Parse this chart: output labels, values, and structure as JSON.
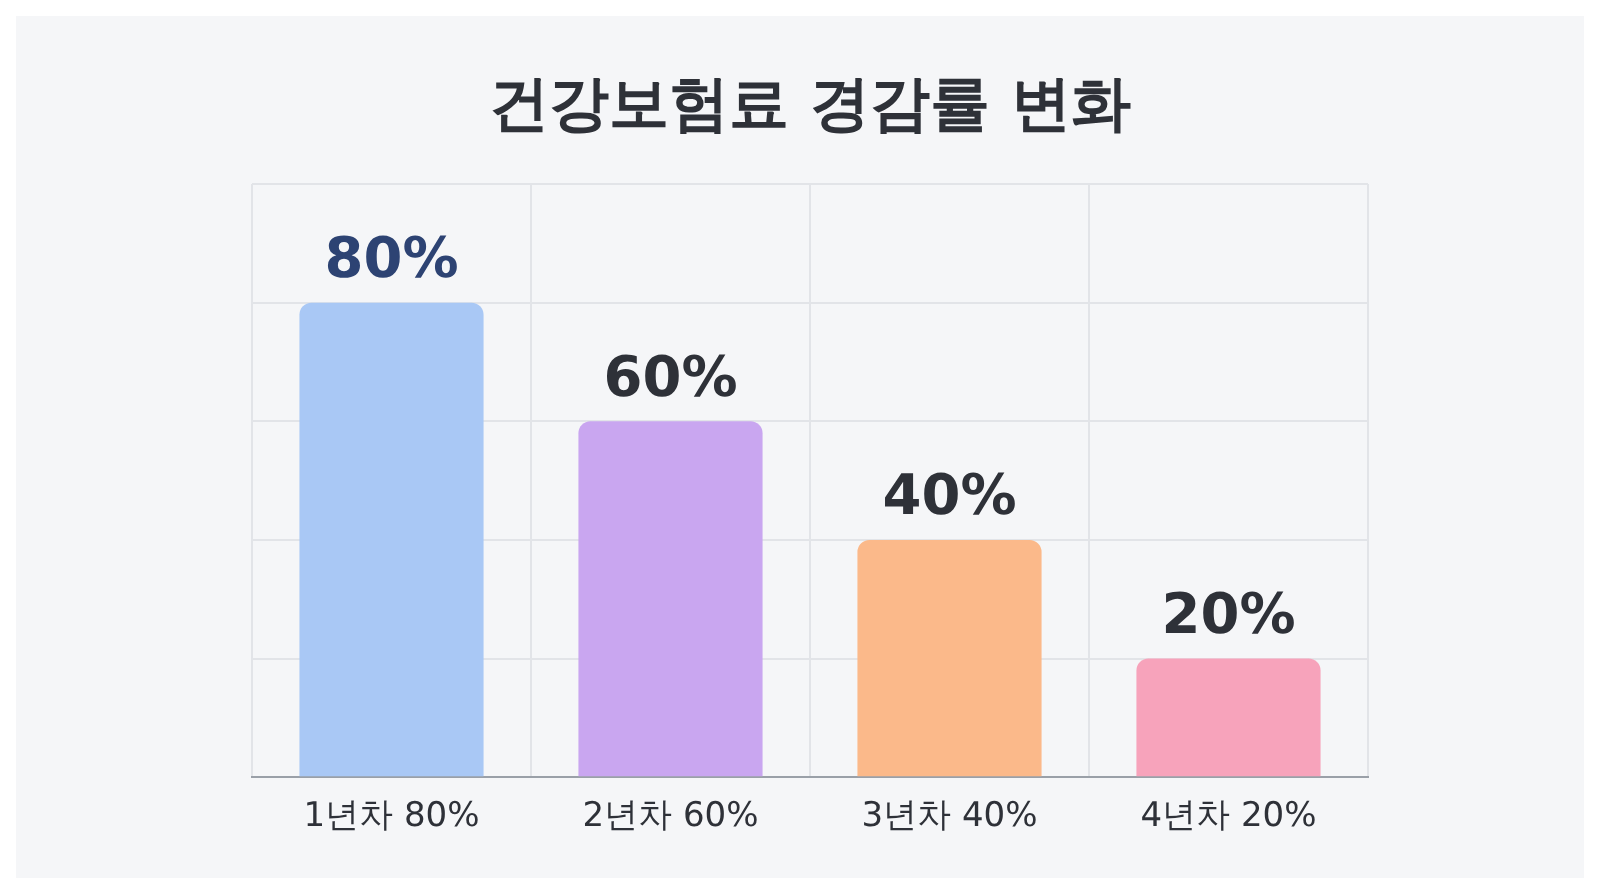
{
  "chart_data": {
    "type": "bar",
    "title": "건강보험료 경감률 변화",
    "categories": [
      "1년차 80%",
      "2년차 60%",
      "3년차 40%",
      "4년차 20%"
    ],
    "values": [
      80,
      60,
      40,
      20
    ],
    "colors": [
      "#a9c8f5",
      "#c9a6f0",
      "#fbb98a",
      "#f7a3bb"
    ],
    "value_labels": [
      "80%",
      "60%",
      "40%",
      "20%"
    ],
    "tick_labels": "x",
    "grid": true
  }
}
